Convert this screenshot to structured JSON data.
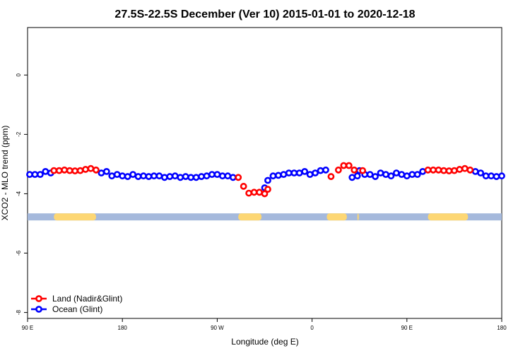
{
  "chart_data": {
    "type": "scatter",
    "title": "27.5S-22.5S December (Ver 10)   2015-01-01 to 2020-12-18",
    "xlabel": "Longitude (deg E)",
    "ylabel": "XCO2 - MLO trend (ppm)",
    "x_tick_labels": [
      "90 E",
      "180",
      "90 W",
      "0",
      "90 E",
      "180"
    ],
    "x_ticks": [
      90,
      180,
      270,
      360,
      450,
      540
    ],
    "xlim": [
      90,
      540
    ],
    "y_tick_labels": [
      "0",
      "-2",
      "-4",
      "-6",
      "-8"
    ],
    "y_ticks": [
      0,
      -2,
      -4,
      -6,
      -8
    ],
    "ylim": [
      -8.2,
      1.6
    ],
    "grid": false,
    "legend_position": "bottom-left",
    "colors": {
      "land": "#ff0000",
      "ocean": "#0000ff",
      "land_mask": "#fdd774",
      "ocean_mask": "#a5b9dc"
    },
    "series": [
      {
        "name": "Land (Nadir&Glint)",
        "color": "#ff0000",
        "points": [
          [
            115,
            -3.22
          ],
          [
            120,
            -3.22
          ],
          [
            125,
            -3.2
          ],
          [
            130,
            -3.22
          ],
          [
            135,
            -3.23
          ],
          [
            140,
            -3.22
          ],
          [
            145,
            -3.18
          ],
          [
            150,
            -3.15
          ],
          [
            155,
            -3.2
          ],
          [
            290,
            -3.45
          ],
          [
            295,
            -3.75
          ],
          [
            300,
            -3.98
          ],
          [
            305,
            -3.95
          ],
          [
            310,
            -3.95
          ],
          [
            315,
            -4.0
          ],
          [
            318,
            -3.85
          ],
          [
            378,
            -3.42
          ],
          [
            385,
            -3.2
          ],
          [
            390,
            -3.05
          ],
          [
            395,
            -3.05
          ],
          [
            400,
            -3.2
          ],
          [
            408,
            -3.22
          ],
          [
            470,
            -3.2
          ],
          [
            475,
            -3.2
          ],
          [
            480,
            -3.2
          ],
          [
            485,
            -3.22
          ],
          [
            490,
            -3.23
          ],
          [
            495,
            -3.22
          ],
          [
            500,
            -3.18
          ],
          [
            505,
            -3.15
          ],
          [
            510,
            -3.2
          ]
        ]
      },
      {
        "name": "Ocean (Glint)",
        "color": "#0000ff",
        "points": [
          [
            92,
            -3.35
          ],
          [
            97,
            -3.35
          ],
          [
            102,
            -3.35
          ],
          [
            107,
            -3.25
          ],
          [
            112,
            -3.3
          ],
          [
            160,
            -3.3
          ],
          [
            165,
            -3.25
          ],
          [
            170,
            -3.4
          ],
          [
            175,
            -3.35
          ],
          [
            180,
            -3.4
          ],
          [
            185,
            -3.42
          ],
          [
            190,
            -3.35
          ],
          [
            195,
            -3.42
          ],
          [
            200,
            -3.4
          ],
          [
            205,
            -3.42
          ],
          [
            210,
            -3.4
          ],
          [
            215,
            -3.4
          ],
          [
            220,
            -3.45
          ],
          [
            225,
            -3.42
          ],
          [
            230,
            -3.4
          ],
          [
            235,
            -3.45
          ],
          [
            240,
            -3.42
          ],
          [
            245,
            -3.45
          ],
          [
            250,
            -3.45
          ],
          [
            255,
            -3.42
          ],
          [
            260,
            -3.4
          ],
          [
            265,
            -3.35
          ],
          [
            270,
            -3.35
          ],
          [
            275,
            -3.4
          ],
          [
            280,
            -3.4
          ],
          [
            285,
            -3.45
          ],
          [
            315,
            -3.8
          ],
          [
            318,
            -3.55
          ],
          [
            323,
            -3.4
          ],
          [
            328,
            -3.38
          ],
          [
            333,
            -3.35
          ],
          [
            338,
            -3.3
          ],
          [
            343,
            -3.3
          ],
          [
            348,
            -3.3
          ],
          [
            353,
            -3.25
          ],
          [
            358,
            -3.35
          ],
          [
            363,
            -3.3
          ],
          [
            368,
            -3.22
          ],
          [
            373,
            -3.2
          ],
          [
            398,
            -3.45
          ],
          [
            403,
            -3.4
          ],
          [
            405,
            -3.22
          ],
          [
            410,
            -3.35
          ],
          [
            415,
            -3.35
          ],
          [
            420,
            -3.42
          ],
          [
            425,
            -3.3
          ],
          [
            430,
            -3.35
          ],
          [
            435,
            -3.4
          ],
          [
            440,
            -3.3
          ],
          [
            445,
            -3.35
          ],
          [
            450,
            -3.4
          ],
          [
            455,
            -3.35
          ],
          [
            460,
            -3.35
          ],
          [
            465,
            -3.25
          ],
          [
            515,
            -3.25
          ],
          [
            520,
            -3.3
          ],
          [
            525,
            -3.4
          ],
          [
            530,
            -3.4
          ],
          [
            535,
            -3.42
          ],
          [
            540,
            -3.4
          ]
        ]
      }
    ],
    "surface_mask": {
      "y": -4.78,
      "land_ranges": [
        [
          115,
          155
        ],
        [
          290,
          312
        ],
        [
          374,
          393
        ],
        [
          403,
          404
        ],
        [
          470,
          508
        ]
      ]
    }
  }
}
